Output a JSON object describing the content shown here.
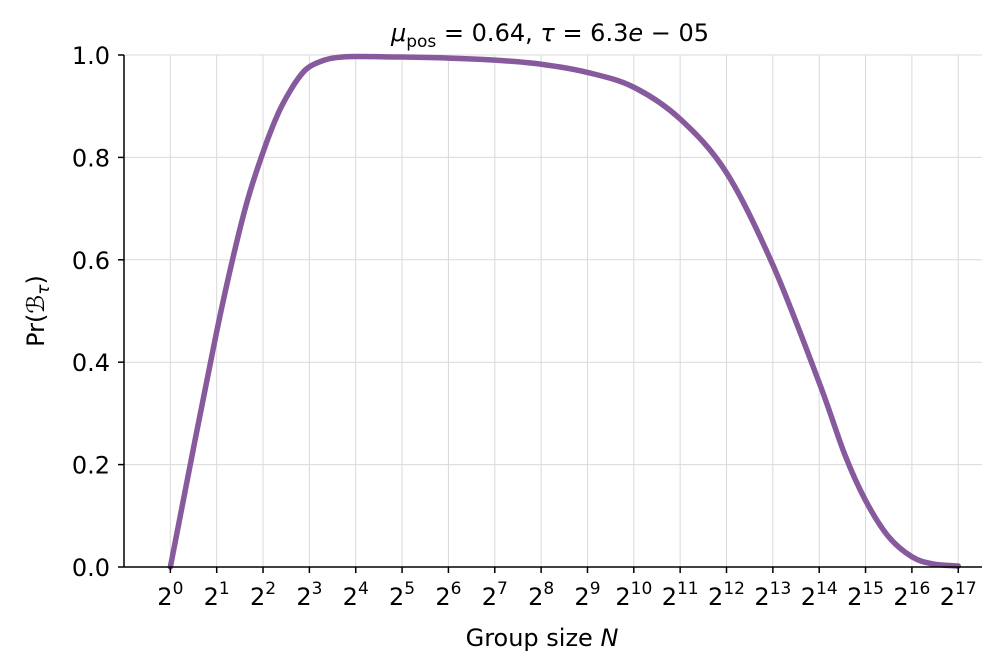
{
  "chart_data": {
    "type": "line",
    "title": {
      "mu_symbol": "μ",
      "mu_subscript": "pos",
      "mu_rest": " = 0.64, ",
      "tau_symbol": "τ",
      "tau_rest": " = 6.3",
      "tau_e": "e",
      "tau_exp": " − 05"
    },
    "xlabel": {
      "text": "Group size ",
      "var": "N"
    },
    "ylabel": {
      "pre": "Pr(",
      "script": "ℬ",
      "sub": "τ",
      "post": ")"
    },
    "x_scale": "log2",
    "xlim": [
      0.5,
      187000
    ],
    "ylim": [
      0,
      1
    ],
    "grid": true,
    "x_ticks": [
      {
        "value": 1,
        "base": "2",
        "exp": "0"
      },
      {
        "value": 2,
        "base": "2",
        "exp": "1"
      },
      {
        "value": 4,
        "base": "2",
        "exp": "2"
      },
      {
        "value": 8,
        "base": "2",
        "exp": "3"
      },
      {
        "value": 16,
        "base": "2",
        "exp": "4"
      },
      {
        "value": 32,
        "base": "2",
        "exp": "5"
      },
      {
        "value": 64,
        "base": "2",
        "exp": "6"
      },
      {
        "value": 128,
        "base": "2",
        "exp": "7"
      },
      {
        "value": 256,
        "base": "2",
        "exp": "8"
      },
      {
        "value": 512,
        "base": "2",
        "exp": "9"
      },
      {
        "value": 1024,
        "base": "2",
        "exp": "10"
      },
      {
        "value": 2048,
        "base": "2",
        "exp": "11"
      },
      {
        "value": 4096,
        "base": "2",
        "exp": "12"
      },
      {
        "value": 8192,
        "base": "2",
        "exp": "13"
      },
      {
        "value": 16384,
        "base": "2",
        "exp": "14"
      },
      {
        "value": 32768,
        "base": "2",
        "exp": "15"
      },
      {
        "value": 65536,
        "base": "2",
        "exp": "16"
      },
      {
        "value": 131072,
        "base": "2",
        "exp": "17"
      }
    ],
    "y_ticks": [
      {
        "value": 0.0,
        "label": "0.0"
      },
      {
        "value": 0.2,
        "label": "0.2"
      },
      {
        "value": 0.4,
        "label": "0.4"
      },
      {
        "value": 0.6,
        "label": "0.6"
      },
      {
        "value": 0.8,
        "label": "0.8"
      },
      {
        "value": 1.0,
        "label": "1.0"
      }
    ],
    "series": [
      {
        "color": "#865a9c",
        "points": [
          [
            1,
            0.0
          ],
          [
            2,
            0.46
          ],
          [
            3,
            0.69
          ],
          [
            4,
            0.81
          ],
          [
            5,
            0.885
          ],
          [
            6,
            0.93
          ],
          [
            7,
            0.96
          ],
          [
            8,
            0.977
          ],
          [
            10,
            0.99
          ],
          [
            12,
            0.995
          ],
          [
            16,
            0.997
          ],
          [
            32,
            0.996
          ],
          [
            64,
            0.994
          ],
          [
            128,
            0.99
          ],
          [
            256,
            0.982
          ],
          [
            512,
            0.966
          ],
          [
            1024,
            0.937
          ],
          [
            2048,
            0.875
          ],
          [
            4096,
            0.77
          ],
          [
            8192,
            0.59
          ],
          [
            16384,
            0.36
          ],
          [
            24000,
            0.22
          ],
          [
            32768,
            0.13
          ],
          [
            46000,
            0.06
          ],
          [
            65536,
            0.02
          ],
          [
            90000,
            0.006
          ],
          [
            131072,
            0.002
          ]
        ]
      }
    ]
  }
}
